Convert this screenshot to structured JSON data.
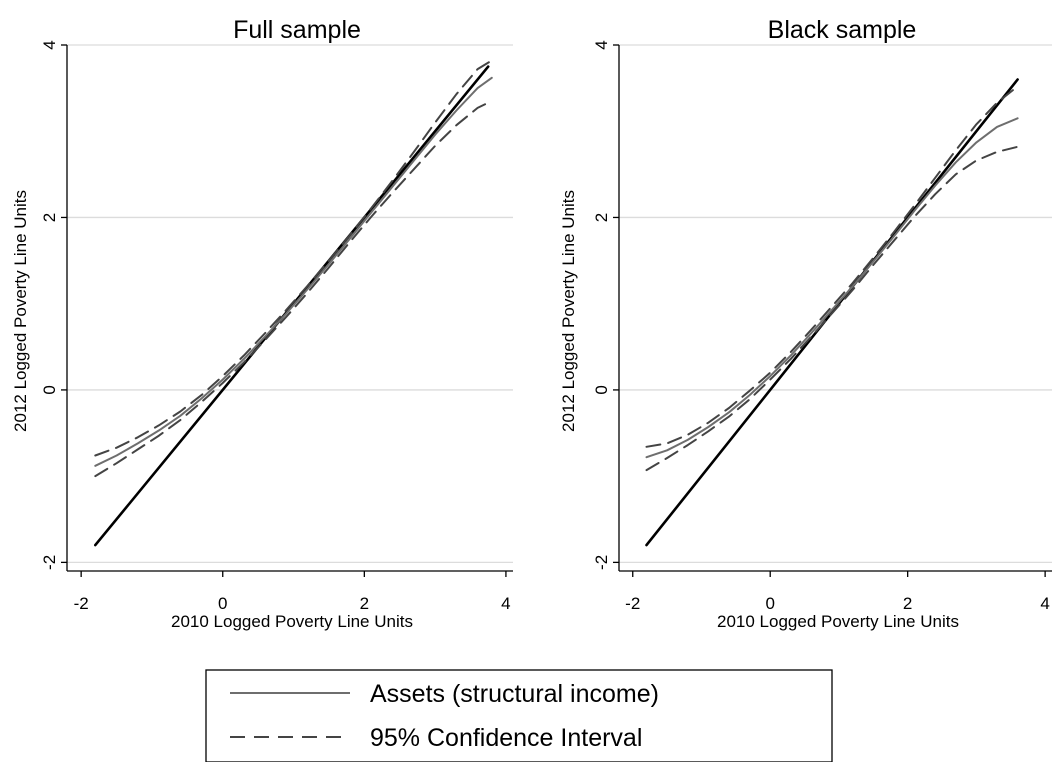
{
  "chart_data": [
    {
      "type": "line",
      "title": "Full sample",
      "xlabel": "2010 Logged Poverty Line Units",
      "ylabel": "2012 Logged Poverty Line Units",
      "xlim": [
        -2.2,
        4.1
      ],
      "ylim": [
        -2.1,
        4.0
      ],
      "xticks": [
        -2,
        0,
        2,
        4
      ],
      "yticks": [
        -2,
        0,
        2,
        4
      ],
      "xtick_labels": [
        "-2",
        "0",
        "2",
        "4"
      ],
      "ytick_labels": [
        "-2",
        "0",
        "2",
        "4"
      ],
      "grid": "horizontal",
      "series": [
        {
          "role": "reference",
          "color": "#000000",
          "x": [
            -1.8,
            3.75
          ],
          "y": [
            -1.8,
            3.75
          ]
        },
        {
          "role": "estimate",
          "name": "Assets (structural income)",
          "color": "#6e6e6e",
          "x": [
            -1.8,
            -1.5,
            -1.2,
            -0.9,
            -0.6,
            -0.3,
            0.0,
            0.3,
            0.6,
            0.9,
            1.2,
            1.5,
            1.8,
            2.1,
            2.4,
            2.7,
            3.0,
            3.3,
            3.6,
            3.8
          ],
          "y": [
            -0.88,
            -0.76,
            -0.62,
            -0.47,
            -0.3,
            -0.1,
            0.12,
            0.36,
            0.62,
            0.89,
            1.17,
            1.46,
            1.76,
            2.06,
            2.36,
            2.66,
            2.96,
            3.24,
            3.5,
            3.62
          ]
        },
        {
          "role": "ci_upper",
          "name": "95% Confidence Interval",
          "color": "#444444",
          "x": [
            -1.8,
            -1.5,
            -1.2,
            -0.9,
            -0.6,
            -0.3,
            0.0,
            0.3,
            0.6,
            0.9,
            1.2,
            1.5,
            1.8,
            2.1,
            2.4,
            2.7,
            3.0,
            3.3,
            3.6,
            3.8
          ],
          "y": [
            -0.76,
            -0.67,
            -0.55,
            -0.41,
            -0.25,
            -0.06,
            0.16,
            0.4,
            0.66,
            0.93,
            1.21,
            1.5,
            1.8,
            2.11,
            2.43,
            2.76,
            3.1,
            3.43,
            3.72,
            3.82
          ]
        },
        {
          "role": "ci_lower",
          "name": "95% Confidence Interval",
          "color": "#444444",
          "x": [
            -1.8,
            -1.5,
            -1.2,
            -0.9,
            -0.6,
            -0.3,
            0.0,
            0.3,
            0.6,
            0.9,
            1.2,
            1.5,
            1.8,
            2.1,
            2.4,
            2.7,
            3.0,
            3.3,
            3.6,
            3.8
          ],
          "y": [
            -1.0,
            -0.85,
            -0.69,
            -0.53,
            -0.35,
            -0.14,
            0.08,
            0.32,
            0.58,
            0.85,
            1.13,
            1.42,
            1.72,
            2.01,
            2.29,
            2.56,
            2.83,
            3.07,
            3.27,
            3.35
          ]
        }
      ]
    },
    {
      "type": "line",
      "title": "Black sample",
      "xlabel": "2010 Logged Poverty Line Units",
      "ylabel": "2012 Logged Poverty Line Units",
      "xlim": [
        -2.2,
        4.1
      ],
      "ylim": [
        -2.1,
        4.0
      ],
      "xticks": [
        -2,
        0,
        2,
        4
      ],
      "yticks": [
        -2,
        0,
        2,
        4
      ],
      "xtick_labels": [
        "-2",
        "0",
        "2",
        "4"
      ],
      "ytick_labels": [
        "-2",
        "0",
        "2",
        "4"
      ],
      "grid": "horizontal",
      "series": [
        {
          "role": "reference",
          "color": "#000000",
          "x": [
            -1.8,
            3.6
          ],
          "y": [
            -1.8,
            3.6
          ]
        },
        {
          "role": "estimate",
          "name": "Assets (structural income)",
          "color": "#6e6e6e",
          "x": [
            -1.8,
            -1.5,
            -1.2,
            -0.9,
            -0.6,
            -0.3,
            0.0,
            0.3,
            0.6,
            0.9,
            1.2,
            1.5,
            1.8,
            2.1,
            2.4,
            2.7,
            3.0,
            3.3,
            3.6
          ],
          "y": [
            -0.78,
            -0.7,
            -0.58,
            -0.43,
            -0.26,
            -0.06,
            0.16,
            0.4,
            0.66,
            0.93,
            1.2,
            1.49,
            1.78,
            2.08,
            2.37,
            2.64,
            2.87,
            3.05,
            3.15
          ]
        },
        {
          "role": "ci_upper",
          "name": "95% Confidence Interval",
          "color": "#444444",
          "x": [
            -1.8,
            -1.5,
            -1.2,
            -0.9,
            -0.6,
            -0.3,
            0.0,
            0.3,
            0.6,
            0.9,
            1.2,
            1.5,
            1.8,
            2.1,
            2.4,
            2.7,
            3.0,
            3.3,
            3.6
          ],
          "y": [
            -0.66,
            -0.62,
            -0.52,
            -0.38,
            -0.21,
            -0.01,
            0.2,
            0.44,
            0.7,
            0.97,
            1.24,
            1.53,
            1.83,
            2.14,
            2.46,
            2.78,
            3.08,
            3.33,
            3.52
          ]
        },
        {
          "role": "ci_lower",
          "name": "95% Confidence Interval",
          "color": "#444444",
          "x": [
            -1.8,
            -1.5,
            -1.2,
            -0.9,
            -0.6,
            -0.3,
            0.0,
            0.3,
            0.6,
            0.9,
            1.2,
            1.5,
            1.8,
            2.1,
            2.4,
            2.7,
            3.0,
            3.3,
            3.6
          ],
          "y": [
            -0.93,
            -0.79,
            -0.64,
            -0.48,
            -0.31,
            -0.11,
            0.12,
            0.36,
            0.62,
            0.89,
            1.16,
            1.45,
            1.73,
            2.01,
            2.27,
            2.5,
            2.66,
            2.76,
            2.82
          ]
        }
      ]
    }
  ],
  "legend": {
    "placement": "bottom-center",
    "entries": [
      {
        "label": "Assets (structural income)",
        "style": "solid",
        "color": "#6e6e6e"
      },
      {
        "label": "95% Confidence Interval",
        "style": "dashed",
        "color": "#444444"
      }
    ]
  }
}
